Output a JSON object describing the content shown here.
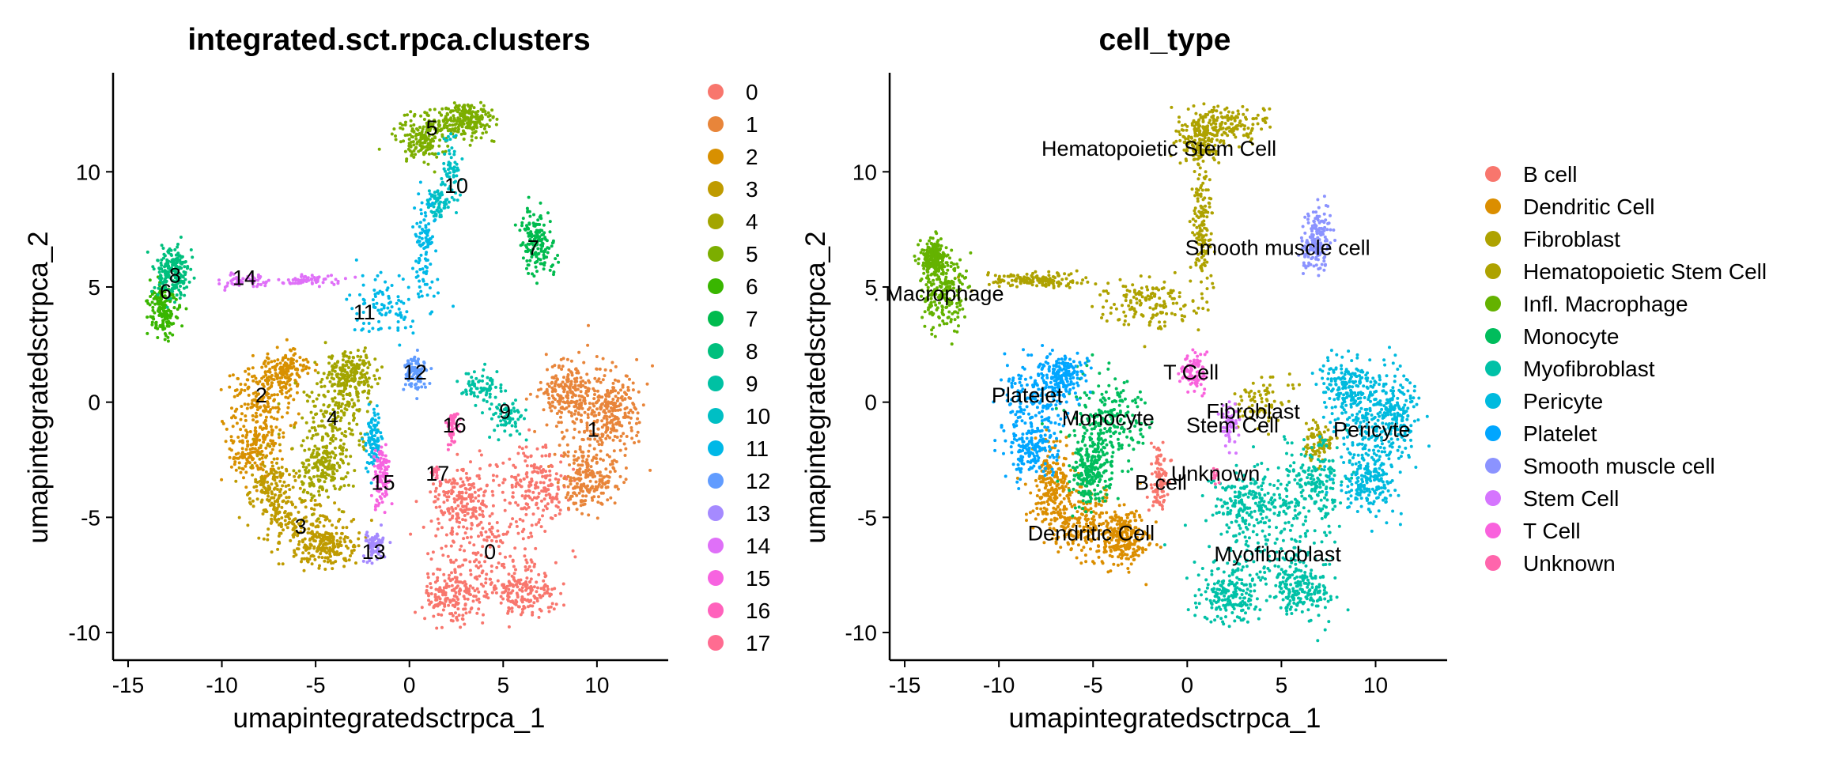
{
  "chart_data": [
    {
      "type": "scatter",
      "title": "integrated.sct.rpca.clusters",
      "xlabel": "umapintegratedsctrpca_1",
      "ylabel": "umapintegratedsctrpca_2",
      "xlim": [
        -15.8,
        13.8
      ],
      "ylim": [
        -11.2,
        14.3
      ],
      "xticks": [
        -15,
        -10,
        -5,
        0,
        5,
        10
      ],
      "yticks": [
        -10,
        -5,
        0,
        5,
        10
      ],
      "legend_position": "right",
      "legend": [
        "0",
        "1",
        "2",
        "3",
        "4",
        "5",
        "6",
        "7",
        "8",
        "9",
        "10",
        "11",
        "12",
        "13",
        "14",
        "15",
        "16",
        "17"
      ],
      "colors": [
        "#F8766D",
        "#E8853A",
        "#D89000",
        "#BF9B00",
        "#A3A500",
        "#7CAE00",
        "#39B600",
        "#00BB4E",
        "#00BF7D",
        "#00C1A3",
        "#00BFC4",
        "#00B8E7",
        "#619CFF",
        "#A58AFF",
        "#DF70F8",
        "#F763E0",
        "#FF62BC",
        "#FF6C91"
      ],
      "cluster_labels": [
        {
          "text": "0",
          "x": 4.3,
          "y": -6.5
        },
        {
          "text": "1",
          "x": 9.8,
          "y": -1.2
        },
        {
          "text": "2",
          "x": -7.9,
          "y": 0.3
        },
        {
          "text": "3",
          "x": -5.8,
          "y": -5.4
        },
        {
          "text": "4",
          "x": -4.1,
          "y": -0.7
        },
        {
          "text": "5",
          "x": 1.2,
          "y": 11.9
        },
        {
          "text": "6",
          "x": -13.0,
          "y": 4.8
        },
        {
          "text": "7",
          "x": 6.6,
          "y": 6.7
        },
        {
          "text": "8",
          "x": -12.5,
          "y": 5.5
        },
        {
          "text": "9",
          "x": 5.1,
          "y": -0.4
        },
        {
          "text": "10",
          "x": 2.5,
          "y": 9.4
        },
        {
          "text": "11",
          "x": -2.4,
          "y": 3.9
        },
        {
          "text": "12",
          "x": 0.3,
          "y": 1.3
        },
        {
          "text": "13",
          "x": -1.9,
          "y": -6.5
        },
        {
          "text": "14",
          "x": -8.8,
          "y": 5.4
        },
        {
          "text": "15",
          "x": -1.4,
          "y": -3.5
        },
        {
          "text": "16",
          "x": 2.4,
          "y": -1.0
        },
        {
          "text": "17",
          "x": 1.5,
          "y": -3.1
        }
      ],
      "clusters": [
        {
          "c": 0,
          "n": 900,
          "pts": [
            [
              4.3,
              -6.0,
              2.9,
              2.2
            ],
            [
              2.9,
              -4.2,
              1.5,
              1.3
            ],
            [
              6.8,
              -3.5,
              1.6,
              1.5
            ],
            [
              2.3,
              -8.4,
              1.5,
              1.1
            ],
            [
              6.0,
              -8.2,
              1.6,
              1.0
            ]
          ]
        },
        {
          "c": 1,
          "n": 700,
          "pts": [
            [
              9.8,
              -1.0,
              1.9,
              2.4
            ],
            [
              11.0,
              -0.3,
              1.2,
              1.5
            ],
            [
              8.4,
              0.5,
              1.2,
              1.1
            ],
            [
              9.6,
              -3.5,
              1.3,
              1.1
            ]
          ]
        },
        {
          "c": 2,
          "n": 500,
          "pts": [
            [
              -7.9,
              0.1,
              1.7,
              1.6
            ],
            [
              -8.3,
              -2.0,
              1.2,
              1.4
            ],
            [
              -6.6,
              1.4,
              1.0,
              0.8
            ]
          ]
        },
        {
          "c": 3,
          "n": 500,
          "pts": [
            [
              -5.6,
              -5.4,
              1.9,
              1.2
            ],
            [
              -7.3,
              -3.8,
              1.1,
              1.5
            ],
            [
              -4.3,
              -6.3,
              1.3,
              0.8
            ]
          ]
        },
        {
          "c": 4,
          "n": 550,
          "pts": [
            [
              -4.0,
              -0.6,
              1.6,
              1.7
            ],
            [
              -4.6,
              -2.9,
              1.3,
              1.4
            ],
            [
              -3.1,
              1.3,
              1.1,
              0.8
            ]
          ]
        },
        {
          "c": 5,
          "n": 420,
          "pts": [
            [
              2.0,
              12.1,
              2.0,
              0.7
            ],
            [
              0.6,
              11.3,
              1.1,
              0.8
            ],
            [
              3.3,
              12.3,
              1.0,
              0.6
            ]
          ]
        },
        {
          "c": 6,
          "n": 180,
          "pts": [
            [
              -13.2,
              4.0,
              0.7,
              1.0
            ]
          ]
        },
        {
          "c": 7,
          "n": 160,
          "pts": [
            [
              6.8,
              7.0,
              0.8,
              1.3
            ]
          ]
        },
        {
          "c": 8,
          "n": 200,
          "pts": [
            [
              -12.6,
              5.6,
              0.9,
              1.0
            ]
          ]
        },
        {
          "c": 9,
          "n": 140,
          "pts": [
            [
              5.2,
              -0.7,
              0.9,
              0.8
            ],
            [
              3.8,
              0.6,
              1.0,
              0.6
            ]
          ]
        },
        {
          "c": 10,
          "n": 140,
          "pts": [
            [
              2.2,
              10.0,
              0.5,
              1.4
            ],
            [
              1.5,
              8.7,
              0.5,
              0.6
            ]
          ]
        },
        {
          "c": 11,
          "n": 300,
          "pts": [
            [
              -1.4,
              4.2,
              2.2,
              1.2
            ],
            [
              0.8,
              6.8,
              0.5,
              1.9
            ],
            [
              -1.9,
              -1.6,
              0.4,
              1.2
            ]
          ]
        },
        {
          "c": 12,
          "n": 90,
          "pts": [
            [
              0.3,
              1.3,
              0.6,
              0.7
            ]
          ]
        },
        {
          "c": 13,
          "n": 80,
          "pts": [
            [
              -1.9,
              -6.2,
              0.5,
              0.6
            ]
          ]
        },
        {
          "c": 14,
          "n": 120,
          "pts": [
            [
              -8.5,
              5.3,
              1.4,
              0.3
            ],
            [
              -5.3,
              5.3,
              1.4,
              0.2
            ]
          ]
        },
        {
          "c": 15,
          "n": 110,
          "pts": [
            [
              -1.5,
              -3.3,
              0.4,
              1.3
            ]
          ]
        },
        {
          "c": 16,
          "n": 50,
          "pts": [
            [
              2.3,
              -1.0,
              0.3,
              0.7
            ]
          ]
        },
        {
          "c": 17,
          "n": 15,
          "pts": [
            [
              1.4,
              -3.1,
              0.2,
              0.3
            ]
          ]
        }
      ]
    },
    {
      "type": "scatter",
      "title": "cell_type",
      "xlabel": "umapintegratedsctrpca_1",
      "ylabel": "umapintegratedsctrpca_2",
      "xlim": [
        -15.8,
        13.8
      ],
      "ylim": [
        -11.2,
        14.3
      ],
      "xticks": [
        -15,
        -10,
        -5,
        0,
        5,
        10
      ],
      "yticks": [
        -10,
        -5,
        0,
        5,
        10
      ],
      "legend_position": "right",
      "legend": [
        "B cell",
        "Dendritic Cell",
        "Fibroblast",
        "Hematopoietic Stem Cell",
        "Infl. Macrophage",
        "Monocyte",
        "Myofibroblast",
        "Pericyte",
        "Platelet",
        "Smooth muscle cell",
        "Stem Cell",
        "T Cell",
        "Unknown"
      ],
      "colors": [
        "#F8766D",
        "#DB8E00",
        "#AEA200",
        "#AEA200",
        "#64B200",
        "#00BD5C",
        "#00C1A7",
        "#00BADE",
        "#00A6FF",
        "#8B93FF",
        "#D575FE",
        "#F962DD",
        "#FF65AC"
      ],
      "cluster_labels": [
        {
          "text": "B cell",
          "x": -1.4,
          "y": -3.5
        },
        {
          "text": "Dendritic Cell",
          "x": -5.1,
          "y": -5.7
        },
        {
          "text": "Fibroblast",
          "x": 3.5,
          "y": -0.4
        },
        {
          "text": "Hematopoietic Stem Cell",
          "x": -1.5,
          "y": 11.0
        },
        {
          "text": ". Macrophage",
          "x": -13.2,
          "y": 4.7
        },
        {
          "text": "Monocyte",
          "x": -4.2,
          "y": -0.7
        },
        {
          "text": "Myofibroblast",
          "x": 4.8,
          "y": -6.6
        },
        {
          "text": "Pericyte",
          "x": 9.8,
          "y": -1.2
        },
        {
          "text": "Platelet",
          "x": -8.5,
          "y": 0.3
        },
        {
          "text": "Smooth muscle cell",
          "x": 4.8,
          "y": 6.7
        },
        {
          "text": "Stem Cell",
          "x": 2.4,
          "y": -1.0
        },
        {
          "text": "T Cell",
          "x": 0.2,
          "y": 1.3
        },
        {
          "text": "Unknown",
          "x": 1.5,
          "y": -3.1
        }
      ],
      "clusters": [
        {
          "c": 0,
          "n": 100,
          "pts": [
            [
              -1.5,
              -3.4,
              0.4,
              1.4
            ]
          ]
        },
        {
          "c": 1,
          "n": 650,
          "pts": [
            [
              -5.4,
              -5.3,
              2.1,
              1.3
            ],
            [
              -7.2,
              -3.6,
              1.0,
              1.5
            ],
            [
              -3.3,
              -5.9,
              1.1,
              1.0
            ]
          ]
        },
        {
          "c": 2,
          "n": 160,
          "pts": [
            [
              4.0,
              0.0,
              1.2,
              1.1
            ],
            [
              7.0,
              -1.8,
              0.6,
              0.8
            ]
          ]
        },
        {
          "c": 3,
          "n": 750,
          "pts": [
            [
              2.0,
              12.1,
              2.0,
              0.7
            ],
            [
              0.6,
              11.3,
              1.1,
              0.8
            ],
            [
              -2.2,
              4.3,
              2.2,
              1.0
            ],
            [
              0.8,
              7.6,
              0.5,
              2.5
            ],
            [
              -8.0,
              5.3,
              2.6,
              0.3
            ]
          ]
        },
        {
          "c": 4,
          "n": 420,
          "pts": [
            [
              -13.0,
              4.8,
              1.1,
              1.5
            ],
            [
              -13.5,
              6.2,
              0.6,
              0.7
            ]
          ]
        },
        {
          "c": 5,
          "n": 450,
          "pts": [
            [
              -4.2,
              -0.8,
              1.7,
              1.7
            ],
            [
              -5.2,
              -3.0,
              1.0,
              1.2
            ]
          ]
        },
        {
          "c": 6,
          "n": 900,
          "pts": [
            [
              4.5,
              -6.1,
              3.0,
              2.3
            ],
            [
              3.3,
              -4.2,
              1.6,
              1.4
            ],
            [
              6.8,
              -3.5,
              1.6,
              1.6
            ],
            [
              2.3,
              -8.4,
              1.5,
              1.1
            ],
            [
              6.0,
              -8.2,
              1.5,
              1.0
            ]
          ]
        },
        {
          "c": 7,
          "n": 700,
          "pts": [
            [
              9.8,
              -1.0,
              1.9,
              2.4
            ],
            [
              11.0,
              -0.3,
              1.2,
              1.5
            ],
            [
              8.4,
              0.5,
              1.2,
              1.1
            ],
            [
              9.6,
              -3.5,
              1.3,
              1.1
            ]
          ]
        },
        {
          "c": 8,
          "n": 500,
          "pts": [
            [
              -8.1,
              0.1,
              1.7,
              1.6
            ],
            [
              -8.3,
              -2.0,
              1.2,
              1.3
            ],
            [
              -6.6,
              1.2,
              1.0,
              0.8
            ]
          ]
        },
        {
          "c": 9,
          "n": 160,
          "pts": [
            [
              6.9,
              7.0,
              0.7,
              1.3
            ]
          ]
        },
        {
          "c": 10,
          "n": 60,
          "pts": [
            [
              2.3,
              -0.9,
              0.4,
              0.8
            ]
          ]
        },
        {
          "c": 11,
          "n": 90,
          "pts": [
            [
              0.3,
              1.3,
              0.7,
              0.7
            ]
          ]
        },
        {
          "c": 12,
          "n": 12,
          "pts": [
            [
              1.5,
              -3.1,
              0.2,
              0.3
            ]
          ]
        }
      ]
    }
  ]
}
